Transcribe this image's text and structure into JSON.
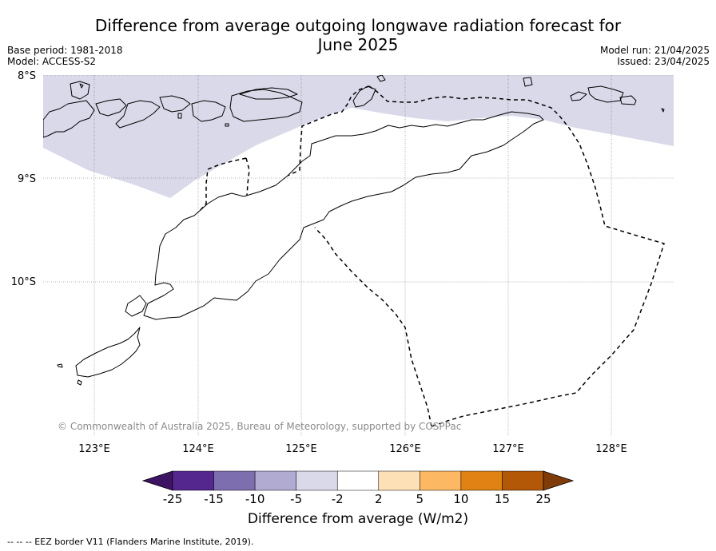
{
  "title_line1": "Difference from average outgoing longwave radiation forecast for",
  "title_line2": "June 2025",
  "base_period": "Base period: 1981-2018",
  "model": "Model: ACCESS-S2",
  "model_run": "Model run: 21/04/2025",
  "issued": "Issued: 23/04/2025",
  "lat_labels": [
    "8°S",
    "9°S",
    "10°S"
  ],
  "lon_labels": [
    "123°E",
    "124°E",
    "125°E",
    "126°E",
    "127°E",
    "128°E"
  ],
  "copyright": "© Commonwealth of Australia 2025, Bureau of Meteorology, supported by COSPPac",
  "colorbar": {
    "ticks": [
      "-25",
      "-15",
      "-10",
      "-5",
      "-2",
      "2",
      "5",
      "10",
      "15",
      "25"
    ],
    "colors": [
      "#3d1463",
      "#54278f",
      "#7d6eaf",
      "#b1abd2",
      "#d9d9ea",
      "#ffffff",
      "#fee0b6",
      "#fdb863",
      "#e08214",
      "#b35806",
      "#7f3b08"
    ],
    "label": "Difference from average (W/m2)"
  },
  "footnote": "--  --  -- EEZ border V11 (Flanders Marine Institute, 2019)."
}
